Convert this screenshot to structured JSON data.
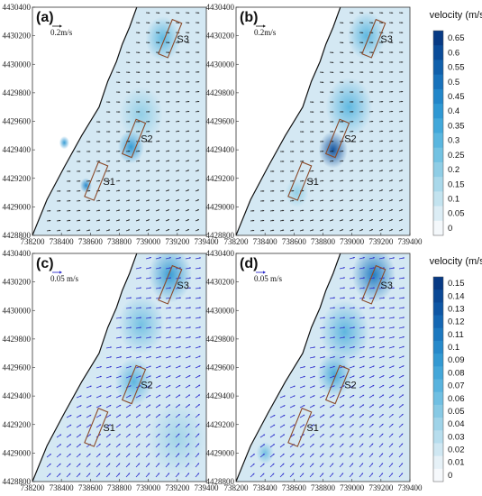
{
  "chart_data": [
    {
      "type": "vector-field",
      "panel": "(a)",
      "scale_label": "0.2m/s",
      "vector_color": "#222222",
      "xlim": [
        738200,
        739400
      ],
      "ylim": [
        4428800,
        4430400
      ],
      "xticks": [
        "738200",
        "738400",
        "738600",
        "738800",
        "739000",
        "739200",
        "739400"
      ],
      "yticks": [
        "4428800",
        "4429000",
        "4429200",
        "4429400",
        "4429600",
        "4429800",
        "4430000",
        "4430200",
        "4430400"
      ],
      "sections": [
        {
          "name": "S1",
          "center": [
            738640,
            4429180
          ],
          "width": 70,
          "height": 260,
          "angle": -22
        },
        {
          "name": "S2",
          "center": [
            738900,
            4429480
          ],
          "width": 70,
          "height": 260,
          "angle": -22
        },
        {
          "name": "S3",
          "center": [
            739150,
            4430180
          ],
          "width": 70,
          "height": 260,
          "angle": -22
        }
      ],
      "hotspots": [
        {
          "x": 739100,
          "y": 4430180,
          "v": 0.3,
          "r": 120
        },
        {
          "x": 738950,
          "y": 4429650,
          "v": 0.22,
          "r": 150
        },
        {
          "x": 738880,
          "y": 4429420,
          "v": 0.42,
          "r": 90
        },
        {
          "x": 738570,
          "y": 4429150,
          "v": 0.45,
          "r": 40
        },
        {
          "x": 738420,
          "y": 4429450,
          "v": 0.4,
          "r": 35
        }
      ]
    },
    {
      "type": "vector-field",
      "panel": "(b)",
      "scale_label": "0.2m/s",
      "vector_color": "#222222",
      "xlim": [
        738200,
        739400
      ],
      "ylim": [
        4428800,
        4430400
      ],
      "xticks": [
        "738200",
        "738400",
        "738600",
        "738800",
        "739000",
        "739200",
        "739400"
      ],
      "yticks": [
        "4428800",
        "4429000",
        "4429200",
        "4429400",
        "4429600",
        "4429800",
        "4430000",
        "4430200",
        "4430400"
      ],
      "sections": [
        {
          "name": "S1",
          "center": [
            738640,
            4429180
          ],
          "width": 70,
          "height": 260,
          "angle": -22
        },
        {
          "name": "S2",
          "center": [
            738900,
            4429480
          ],
          "width": 70,
          "height": 260,
          "angle": -22
        },
        {
          "name": "S3",
          "center": [
            739150,
            4430180
          ],
          "width": 70,
          "height": 260,
          "angle": -22
        }
      ],
      "hotspots": [
        {
          "x": 739100,
          "y": 4430200,
          "v": 0.32,
          "r": 130
        },
        {
          "x": 738980,
          "y": 4429700,
          "v": 0.28,
          "r": 160
        },
        {
          "x": 738870,
          "y": 4429400,
          "v": 0.6,
          "r": 100
        },
        {
          "x": 738620,
          "y": 4429100,
          "v": 0.18,
          "r": 80
        }
      ]
    },
    {
      "type": "vector-field",
      "panel": "(c)",
      "scale_label": "0.05 m/s",
      "vector_color": "#2c2ccc",
      "xlim": [
        738200,
        739400
      ],
      "ylim": [
        4428800,
        4430400
      ],
      "xticks": [
        "738200",
        "738400",
        "738600",
        "738800",
        "739000",
        "739200",
        "739400"
      ],
      "yticks": [
        "4428800",
        "4429000",
        "4429200",
        "4429400",
        "4429600",
        "4429800",
        "4430000",
        "4430200",
        "4430400"
      ],
      "sections": [
        {
          "name": "S1",
          "center": [
            738640,
            4429180
          ],
          "width": 70,
          "height": 260,
          "angle": -22
        },
        {
          "name": "S2",
          "center": [
            738900,
            4429480
          ],
          "width": 70,
          "height": 260,
          "angle": -22
        },
        {
          "name": "S3",
          "center": [
            739150,
            4430180
          ],
          "width": 70,
          "height": 260,
          "angle": -22
        }
      ],
      "hotspots": [
        {
          "x": 739150,
          "y": 4430250,
          "v": 0.09,
          "r": 150
        },
        {
          "x": 738950,
          "y": 4429900,
          "v": 0.06,
          "r": 160
        },
        {
          "x": 738900,
          "y": 4429500,
          "v": 0.07,
          "r": 130
        },
        {
          "x": 739200,
          "y": 4429100,
          "v": 0.04,
          "r": 200
        }
      ]
    },
    {
      "type": "vector-field",
      "panel": "(d)",
      "scale_label": "0.05 m/s",
      "vector_color": "#2c2ccc",
      "xlim": [
        738200,
        739400
      ],
      "ylim": [
        4428800,
        4430400
      ],
      "xticks": [
        "738200",
        "738400",
        "738600",
        "738800",
        "739000",
        "739200",
        "739400"
      ],
      "yticks": [
        "4428800",
        "4429000",
        "4429200",
        "4429400",
        "4429600",
        "4429800",
        "4430000",
        "4430200",
        "4430400"
      ],
      "sections": [
        {
          "name": "S1",
          "center": [
            738640,
            4429180
          ],
          "width": 70,
          "height": 260,
          "angle": -22
        },
        {
          "name": "S2",
          "center": [
            738900,
            4429480
          ],
          "width": 70,
          "height": 260,
          "angle": -22
        },
        {
          "name": "S3",
          "center": [
            739150,
            4430180
          ],
          "width": 70,
          "height": 260,
          "angle": -22
        }
      ],
      "hotspots": [
        {
          "x": 739150,
          "y": 4430250,
          "v": 0.11,
          "r": 150
        },
        {
          "x": 738950,
          "y": 4429850,
          "v": 0.07,
          "r": 170
        },
        {
          "x": 738880,
          "y": 4429550,
          "v": 0.08,
          "r": 120
        },
        {
          "x": 738400,
          "y": 4429000,
          "v": 0.06,
          "r": 60
        }
      ]
    }
  ],
  "coastline": [
    [
      738200,
      4428800
    ],
    [
      738300,
      4429050
    ],
    [
      738420,
      4429280
    ],
    [
      738540,
      4429500
    ],
    [
      738660,
      4429700
    ],
    [
      738720,
      4429880
    ],
    [
      738780,
      4430020
    ],
    [
      738820,
      4430140
    ],
    [
      738870,
      4430260
    ],
    [
      738920,
      4430400
    ]
  ],
  "colorbars": [
    {
      "title": "velocity (m/s)",
      "ticks": [
        "0.65",
        "0.6",
        "0.55",
        "0.5",
        "0.45",
        "0.4",
        "0.35",
        "0.3",
        "0.25",
        "0.2",
        "0.15",
        "0.1",
        "0.05",
        "0"
      ],
      "colors": [
        "#073a84",
        "#0a4c99",
        "#1060ab",
        "#1872bb",
        "#2286c9",
        "#2f98d3",
        "#42a8da",
        "#5ab6df",
        "#73c2e2",
        "#8fcde5",
        "#a9d8ea",
        "#c3e3ef",
        "#dcedf5",
        "#f4f8fb"
      ]
    },
    {
      "title": "velocity (m/s)",
      "ticks": [
        "0.15",
        "0.14",
        "0.13",
        "0.12",
        "0.11",
        "0.1",
        "0.09",
        "0.08",
        "0.07",
        "0.06",
        "0.05",
        "0.04",
        "0.03",
        "0.02",
        "0.01",
        "0"
      ],
      "colors": [
        "#073a84",
        "#0a4895",
        "#0e56a4",
        "#1467b3",
        "#1c78bf",
        "#2689ca",
        "#3399d2",
        "#44a7d9",
        "#59b3de",
        "#70bfe2",
        "#87c9e4",
        "#9fd3e8",
        "#b7dded",
        "#cfe7f2",
        "#e6f1f7",
        "#f6f9fc"
      ]
    }
  ]
}
